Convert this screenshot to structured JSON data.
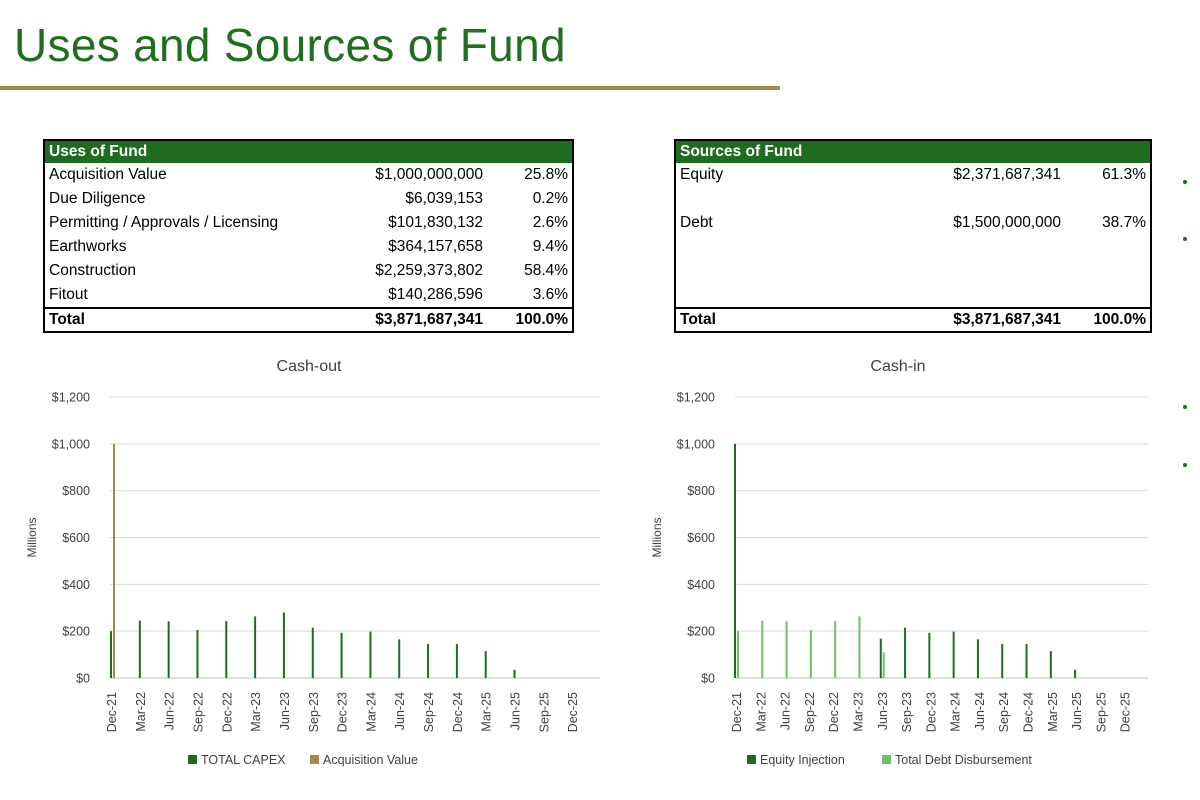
{
  "page": {
    "title": "Uses and Sources of Fund"
  },
  "uses": {
    "header": "Uses of Fund",
    "rows": [
      {
        "label": "Acquisition Value",
        "amount": "$1,000,000,000",
        "pct": "25.8%"
      },
      {
        "label": "Due Diligence",
        "amount": "$6,039,153",
        "pct": "0.2%"
      },
      {
        "label": "Permitting / Approvals / Licensing",
        "amount": "$101,830,132",
        "pct": "2.6%"
      },
      {
        "label": "Earthworks",
        "amount": "$364,157,658",
        "pct": "9.4%"
      },
      {
        "label": "Construction",
        "amount": "$2,259,373,802",
        "pct": "58.4%"
      },
      {
        "label": "Fitout",
        "amount": "$140,286,596",
        "pct": "3.6%"
      }
    ],
    "total": {
      "label": "Total",
      "amount": "$3,871,687,341",
      "pct": "100.0%"
    }
  },
  "sources": {
    "header": "Sources of Fund",
    "rows": [
      {
        "label": "Equity",
        "amount": "$2,371,687,341",
        "pct": "61.3%"
      },
      {
        "label": "Debt",
        "amount": "$1,500,000,000",
        "pct": "38.7%"
      }
    ],
    "total": {
      "label": "Total",
      "amount": "$3,871,687,341",
      "pct": "100.0%"
    }
  },
  "colors": {
    "title": "#1f6f1f",
    "rule": "#a8884a",
    "header_fill": "#1f6b1f",
    "capex": "#1f6b1f",
    "acquisition": "#a8884a",
    "equity": "#1f6b1f",
    "debt": "#6fbf6f"
  },
  "chart_data": [
    {
      "type": "bar",
      "title": "Cash-out",
      "ylabel": "Millions",
      "xlabel": "",
      "ylim": [
        0,
        1200
      ],
      "yticks": [
        "$0",
        "$200",
        "$400",
        "$600",
        "$800",
        "$1,000",
        "$1,200"
      ],
      "categories": [
        "Dec-21",
        "Mar-22",
        "Jun-22",
        "Sep-22",
        "Dec-22",
        "Mar-23",
        "Jun-23",
        "Sep-23",
        "Dec-23",
        "Mar-24",
        "Jun-24",
        "Sep-24",
        "Dec-24",
        "Mar-25",
        "Jun-25",
        "Sep-25",
        "Dec-25"
      ],
      "grid": true,
      "legend_position": "bottom",
      "series": [
        {
          "name": "TOTAL CAPEX",
          "values": [
            200,
            245,
            242,
            205,
            243,
            263,
            280,
            215,
            193,
            198,
            165,
            145,
            145,
            115,
            35,
            0,
            0
          ]
        },
        {
          "name": "Acquisition Value",
          "values": [
            1000,
            0,
            0,
            0,
            0,
            0,
            0,
            0,
            0,
            0,
            0,
            0,
            0,
            0,
            0,
            0,
            0
          ]
        }
      ]
    },
    {
      "type": "bar",
      "title": "Cash-in",
      "ylabel": "Millions",
      "xlabel": "",
      "ylim": [
        0,
        1200
      ],
      "yticks": [
        "$0",
        "$200",
        "$400",
        "$600",
        "$800",
        "$1,000",
        "$1,200"
      ],
      "categories": [
        "Dec-21",
        "Mar-22",
        "Jun-22",
        "Sep-22",
        "Dec-22",
        "Mar-23",
        "Jun-23",
        "Sep-23",
        "Dec-23",
        "Mar-24",
        "Jun-24",
        "Sep-24",
        "Dec-24",
        "Mar-25",
        "Jun-25",
        "Sep-25",
        "Dec-25"
      ],
      "grid": true,
      "legend_position": "bottom",
      "series": [
        {
          "name": "Equity Injection",
          "values": [
            1000,
            0,
            0,
            0,
            0,
            0,
            168,
            215,
            193,
            198,
            165,
            145,
            145,
            115,
            35,
            0,
            0
          ]
        },
        {
          "name": "Total Debt Disbursement",
          "values": [
            200,
            245,
            242,
            205,
            243,
            263,
            110,
            0,
            0,
            0,
            0,
            0,
            0,
            0,
            0,
            0,
            0
          ]
        }
      ]
    }
  ]
}
